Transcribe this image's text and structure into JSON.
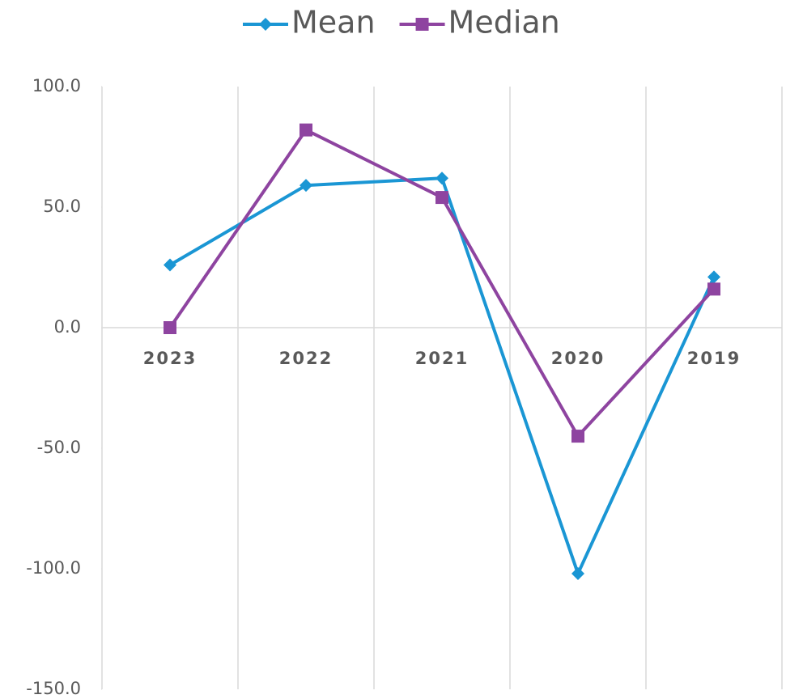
{
  "chart_data": {
    "type": "line",
    "categories": [
      "2023",
      "2022",
      "2021",
      "2020",
      "2019"
    ],
    "series": [
      {
        "name": "Mean",
        "color": "#1a96d4",
        "marker": "diamond",
        "values": [
          26,
          59,
          62,
          -102,
          21
        ]
      },
      {
        "name": "Median",
        "color": "#8e44a0",
        "marker": "square",
        "values": [
          0,
          82,
          54,
          -45,
          16
        ]
      }
    ],
    "ylim": [
      -150,
      100
    ],
    "yticks": [
      {
        "value": -150,
        "label": "-150.0"
      },
      {
        "value": -100,
        "label": "-100.0"
      },
      {
        "value": -50,
        "label": "-50.0"
      },
      {
        "value": 0,
        "label": "0.0"
      },
      {
        "value": 50,
        "label": "50.0"
      },
      {
        "value": 100,
        "label": "100.0"
      }
    ],
    "grid": "x",
    "legend": "top"
  }
}
